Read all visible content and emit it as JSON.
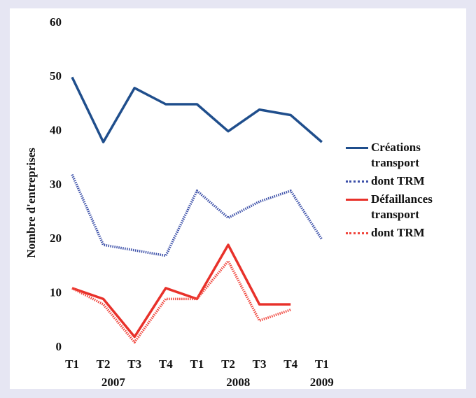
{
  "chart_data": {
    "type": "line",
    "y_label": "Nombre d'entreprises",
    "categories": [
      "T1",
      "T2",
      "T3",
      "T4",
      "T1",
      "T2",
      "T3",
      "T4",
      "T1"
    ],
    "year_labels": [
      "2007",
      "2008",
      "2009"
    ],
    "series": [
      {
        "name": "Créations transport",
        "color": "#1f4e8c",
        "dashed": false,
        "values": [
          50,
          38,
          48,
          45,
          45,
          40,
          44,
          43,
          38
        ]
      },
      {
        "name": "dont TRM",
        "color": "#3b4fa8",
        "dashed": true,
        "values": [
          32,
          19,
          18,
          17,
          29,
          24,
          27,
          29,
          20
        ]
      },
      {
        "name": "Défaillances transport",
        "color": "#e8312a",
        "dashed": false,
        "values": [
          11,
          9,
          2,
          11,
          9,
          19,
          8,
          8,
          null
        ]
      },
      {
        "name": "dont TRM",
        "color": "#f0453c",
        "dashed": true,
        "values": [
          11,
          8,
          1,
          9,
          9,
          16,
          5,
          7,
          null
        ]
      }
    ],
    "ylim": [
      0,
      60
    ],
    "yticks": [
      0,
      10,
      20,
      30,
      40,
      50,
      60
    ],
    "grid": false,
    "legend": "right"
  }
}
